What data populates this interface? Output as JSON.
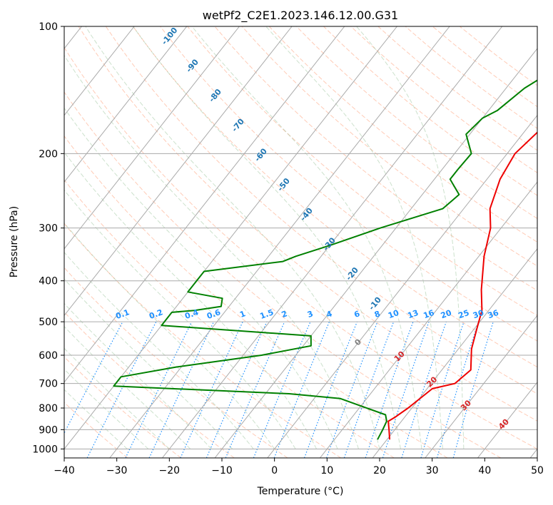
{
  "chart_data": {
    "type": "line",
    "title": "wetPf2_C2E1.2023.146.12.00.G31",
    "xlabel": "Temperature (°C)",
    "ylabel": "Pressure (hPa)",
    "xlim": [
      -40,
      50
    ],
    "ylim": [
      1050,
      100
    ],
    "y_scale": "log",
    "grid": true,
    "x_ticks": [
      "−40",
      "−30",
      "−20",
      "−10",
      "0",
      "10",
      "20",
      "30",
      "40",
      "50"
    ],
    "x_tick_values": [
      -40,
      -30,
      -20,
      -10,
      0,
      10,
      20,
      30,
      40,
      50
    ],
    "y_ticks": [
      "100",
      "200",
      "300",
      "400",
      "500",
      "600",
      "700",
      "800",
      "900",
      "1000"
    ],
    "y_tick_values": [
      100,
      200,
      300,
      400,
      500,
      600,
      700,
      800,
      900,
      1000
    ],
    "series": [
      {
        "color": "#ee0000",
        "role": "temperature",
        "points": [
          [
            20.5,
            950
          ],
          [
            18.9,
            900
          ],
          [
            17.5,
            860
          ],
          [
            18.2,
            840
          ],
          [
            19.3,
            800
          ],
          [
            19.7,
            780
          ],
          [
            21.0,
            720
          ],
          [
            24.5,
            700
          ],
          [
            25.5,
            650
          ],
          [
            22.5,
            580
          ],
          [
            20.5,
            520
          ],
          [
            18.7,
            470
          ],
          [
            15.5,
            420
          ],
          [
            11.0,
            350
          ],
          [
            8.0,
            300
          ],
          [
            5.0,
            270
          ],
          [
            2.5,
            230
          ],
          [
            1.5,
            200
          ],
          [
            3.0,
            170
          ],
          [
            2.9,
            150
          ],
          [
            3.7,
            130
          ],
          [
            3.4,
            110
          ],
          [
            2.9,
            100
          ]
        ]
      },
      {
        "color": "#008000",
        "role": "dewpoint",
        "points": [
          [
            18.2,
            950
          ],
          [
            17.7,
            900
          ],
          [
            17.2,
            860
          ],
          [
            16.0,
            830
          ],
          [
            5.0,
            760
          ],
          [
            -5.5,
            740
          ],
          [
            -40.0,
            710
          ],
          [
            -40.0,
            675
          ],
          [
            -31.0,
            640
          ],
          [
            -16.5,
            600
          ],
          [
            -8.5,
            570
          ],
          [
            -10.0,
            540
          ],
          [
            -40.0,
            510
          ],
          [
            -40.0,
            475
          ],
          [
            -36.0,
            470
          ],
          [
            -31.5,
            460
          ],
          [
            -32.5,
            440
          ],
          [
            -40.0,
            425
          ],
          [
            -40.0,
            380
          ],
          [
            -26.5,
            360
          ],
          [
            -24.8,
            350
          ],
          [
            -20.0,
            330
          ],
          [
            -13.0,
            300
          ],
          [
            -4.0,
            270
          ],
          [
            -3.0,
            250
          ],
          [
            -7.0,
            230
          ],
          [
            -7.0,
            218
          ],
          [
            -6.8,
            200
          ],
          [
            -10.7,
            180
          ],
          [
            -10.0,
            165
          ],
          [
            -8.3,
            158
          ],
          [
            -6.5,
            140
          ],
          [
            -3.2,
            125
          ],
          [
            -1.5,
            115
          ],
          [
            0.5,
            105
          ],
          [
            1.2,
            100
          ]
        ]
      }
    ],
    "isotherm_labels": [
      {
        "text": "0",
        "value": 0
      },
      {
        "text": "10",
        "value": 10
      },
      {
        "text": "20",
        "value": 20
      },
      {
        "text": "30",
        "value": 30
      },
      {
        "text": "40",
        "value": 40
      }
    ],
    "dry_adiabat_labels": [
      {
        "text": "-100",
        "value": -100
      },
      {
        "text": "-90",
        "value": -90
      },
      {
        "text": "-80",
        "value": -80
      },
      {
        "text": "-70",
        "value": -70
      },
      {
        "text": "-60",
        "value": -60
      },
      {
        "text": "-50",
        "value": -50
      },
      {
        "text": "-40",
        "value": -40
      },
      {
        "text": "-30",
        "value": -30
      },
      {
        "text": "-20",
        "value": -20
      },
      {
        "text": "-10",
        "value": -10
      }
    ],
    "mixing_ratio_labels": [
      {
        "text": "0.1",
        "value": 0.1
      },
      {
        "text": "0.2",
        "value": 0.2
      },
      {
        "text": "0.4",
        "value": 0.4
      },
      {
        "text": "0.6",
        "value": 0.6
      },
      {
        "text": "1",
        "value": 1
      },
      {
        "text": "1.5",
        "value": 1.5
      },
      {
        "text": "2",
        "value": 2
      },
      {
        "text": "3",
        "value": 3
      },
      {
        "text": "4",
        "value": 4
      },
      {
        "text": "6",
        "value": 6
      },
      {
        "text": "8",
        "value": 8
      },
      {
        "text": "10",
        "value": 10
      },
      {
        "text": "13",
        "value": 13
      },
      {
        "text": "16",
        "value": 16
      },
      {
        "text": "20",
        "value": 20
      },
      {
        "text": "25",
        "value": 25
      },
      {
        "text": "30",
        "value": 30
      },
      {
        "text": "36",
        "value": 36
      }
    ],
    "colors": {
      "temperature": "#ee0000",
      "dewpoint": "#008000",
      "isotherm": "#aaaaaa",
      "dry_adiabat": "#ffa07a",
      "moist_adiabat": "#8fbc8f",
      "mixing_ratio": "#1e90ff",
      "isotherm_label": "#d62728",
      "zero_isotherm_label": "#808080",
      "adiabat_label": "#1f77b4",
      "mixing_label": "#1e90ff",
      "frame": "#000000"
    }
  }
}
